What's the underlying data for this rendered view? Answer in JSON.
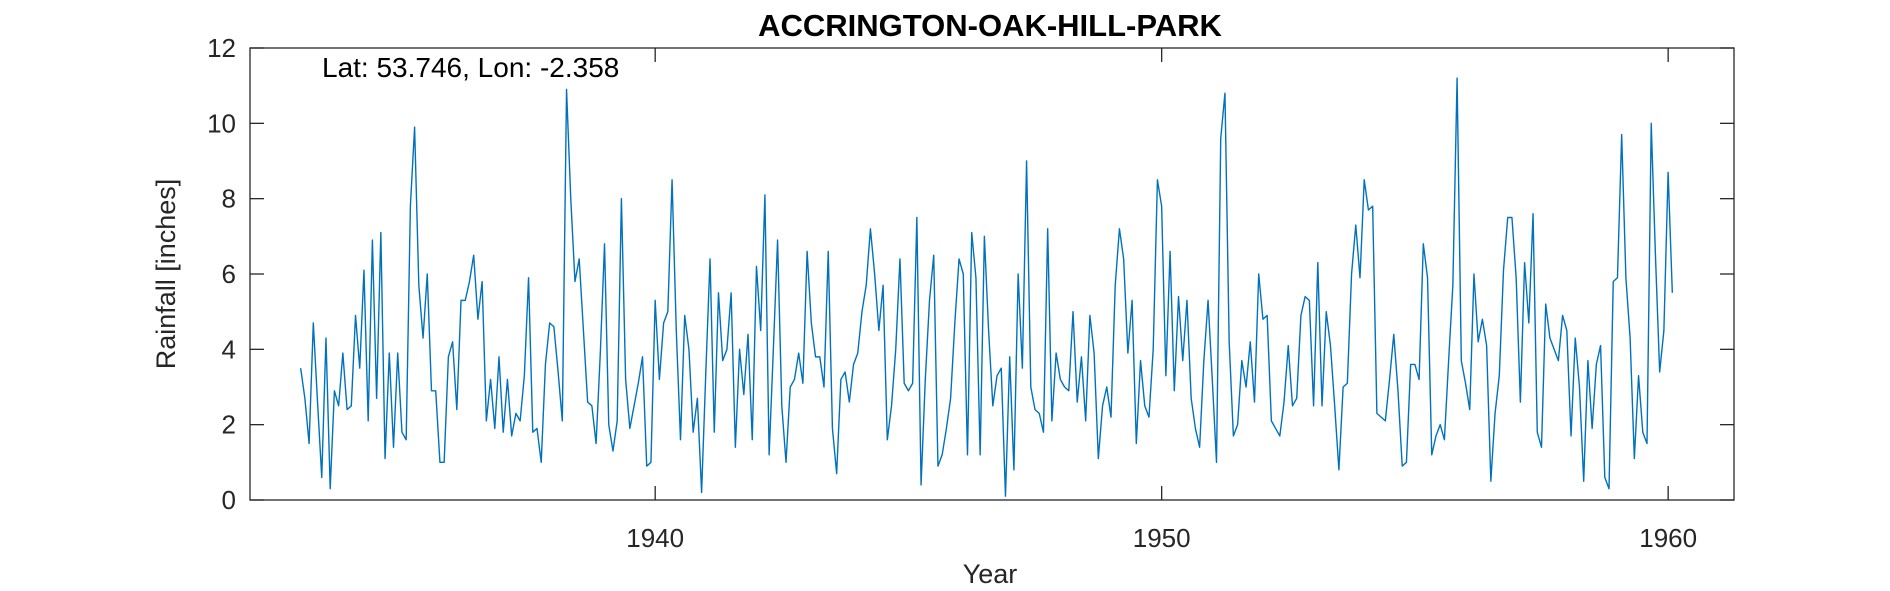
{
  "chart_data": {
    "type": "line",
    "title": "ACCRINGTON-OAK-HILL-PARK",
    "xlabel": "Year",
    "ylabel": "Rainfall [inches]",
    "annotation": "Lat: 53.746, Lon: -2.358",
    "xlim": [
      1932,
      1961.3
    ],
    "ylim": [
      0,
      12
    ],
    "xticks": [
      1940,
      1950,
      1960
    ],
    "yticks": [
      0,
      2,
      4,
      6,
      8,
      10,
      12
    ],
    "grid": false,
    "line_color": "#0072BD",
    "series": [
      {
        "x_start": 1933.0,
        "x_step": 0.08333,
        "values": [
          3.5,
          2.7,
          1.5,
          4.7,
          2.6,
          0.6,
          4.3,
          0.3,
          2.9,
          2.5,
          3.9,
          2.4,
          2.5,
          4.9,
          3.5,
          6.1,
          2.1,
          6.9,
          2.7,
          7.1,
          1.1,
          3.9,
          1.4,
          3.9,
          1.8,
          1.6,
          7.8,
          9.9,
          5.7,
          4.3,
          6.0,
          2.9,
          2.9,
          1.0,
          1.0,
          3.8,
          4.2,
          2.4,
          5.3,
          5.3,
          5.8,
          6.5,
          4.8,
          5.8,
          2.1,
          3.2,
          1.9,
          3.8,
          1.8,
          3.2,
          1.7,
          2.3,
          2.1,
          3.3,
          5.9,
          1.8,
          1.9,
          1.0,
          3.6,
          4.7,
          4.6,
          3.4,
          2.1,
          10.9,
          8.0,
          5.8,
          6.4,
          4.5,
          2.6,
          2.5,
          1.5,
          3.9,
          6.8,
          2.0,
          1.3,
          2.1,
          8.0,
          3.2,
          1.9,
          2.5,
          3.1,
          3.8,
          0.9,
          1.0,
          5.3,
          3.2,
          4.7,
          5.0,
          8.5,
          4.5,
          1.6,
          4.9,
          4.0,
          1.8,
          2.7,
          0.2,
          3.4,
          6.4,
          1.8,
          5.5,
          3.7,
          4.0,
          5.5,
          1.4,
          4.0,
          2.8,
          4.4,
          1.6,
          6.2,
          4.5,
          8.1,
          1.2,
          4.0,
          6.9,
          2.5,
          1.0,
          3.0,
          3.2,
          3.9,
          3.1,
          6.6,
          4.7,
          3.8,
          3.8,
          3.0,
          6.6,
          1.9,
          0.7,
          3.2,
          3.4,
          2.6,
          3.6,
          3.9,
          5.0,
          5.7,
          7.2,
          6.0,
          4.5,
          5.7,
          1.6,
          2.5,
          4.0,
          6.4,
          3.1,
          2.9,
          3.1,
          7.5,
          0.4,
          3.2,
          5.3,
          6.5,
          0.9,
          1.2,
          1.9,
          2.7,
          4.7,
          6.4,
          6.0,
          1.2,
          7.1,
          5.9,
          1.2,
          7.0,
          4.5,
          2.5,
          3.3,
          3.5,
          0.1,
          3.8,
          0.8,
          6.0,
          3.5,
          9.0,
          3.0,
          2.4,
          2.3,
          1.8,
          7.2,
          2.1,
          3.9,
          3.2,
          3.0,
          2.9,
          5.0,
          2.6,
          3.8,
          2.1,
          4.9,
          3.9,
          1.1,
          2.5,
          3.0,
          2.2,
          5.7,
          7.2,
          6.4,
          3.9,
          5.3,
          1.5,
          3.7,
          2.5,
          2.2,
          4.0,
          8.5,
          7.8,
          3.3,
          6.6,
          2.9,
          5.4,
          3.7,
          5.3,
          2.7,
          1.9,
          1.4,
          3.7,
          5.3,
          3.2,
          1.0,
          9.6,
          10.8,
          4.2,
          1.7,
          2.0,
          3.7,
          3.0,
          4.2,
          2.6,
          6.0,
          4.8,
          4.9,
          2.1,
          1.9,
          1.7,
          2.6,
          4.1,
          2.5,
          2.7,
          4.9,
          5.4,
          5.3,
          2.5,
          6.3,
          2.5,
          5.0,
          4.1,
          2.5,
          0.8,
          3.0,
          3.1,
          6.0,
          7.3,
          5.9,
          8.5,
          7.7,
          7.8,
          2.3,
          2.2,
          2.1,
          3.2,
          4.4,
          2.9,
          0.9,
          1.0,
          3.6,
          3.6,
          3.2,
          6.8,
          5.9,
          1.2,
          1.7,
          2.0,
          1.6,
          3.7,
          5.7,
          11.2,
          3.7,
          3.1,
          2.4,
          6.0,
          4.2,
          4.8,
          4.1,
          0.5,
          2.3,
          3.3,
          6.1,
          7.5,
          7.5,
          5.9,
          2.6,
          6.3,
          4.7,
          7.6,
          1.8,
          1.4,
          5.2,
          4.3,
          4.0,
          3.7,
          4.9,
          4.5,
          1.7,
          4.3,
          3.0,
          0.5,
          3.7,
          1.9,
          3.6,
          4.1,
          0.6,
          0.3,
          5.8,
          5.9,
          9.7,
          5.9,
          4.3,
          1.1,
          3.3,
          1.8,
          1.5,
          10.0,
          6.5,
          3.4,
          4.5,
          8.7,
          5.5
        ]
      }
    ]
  }
}
